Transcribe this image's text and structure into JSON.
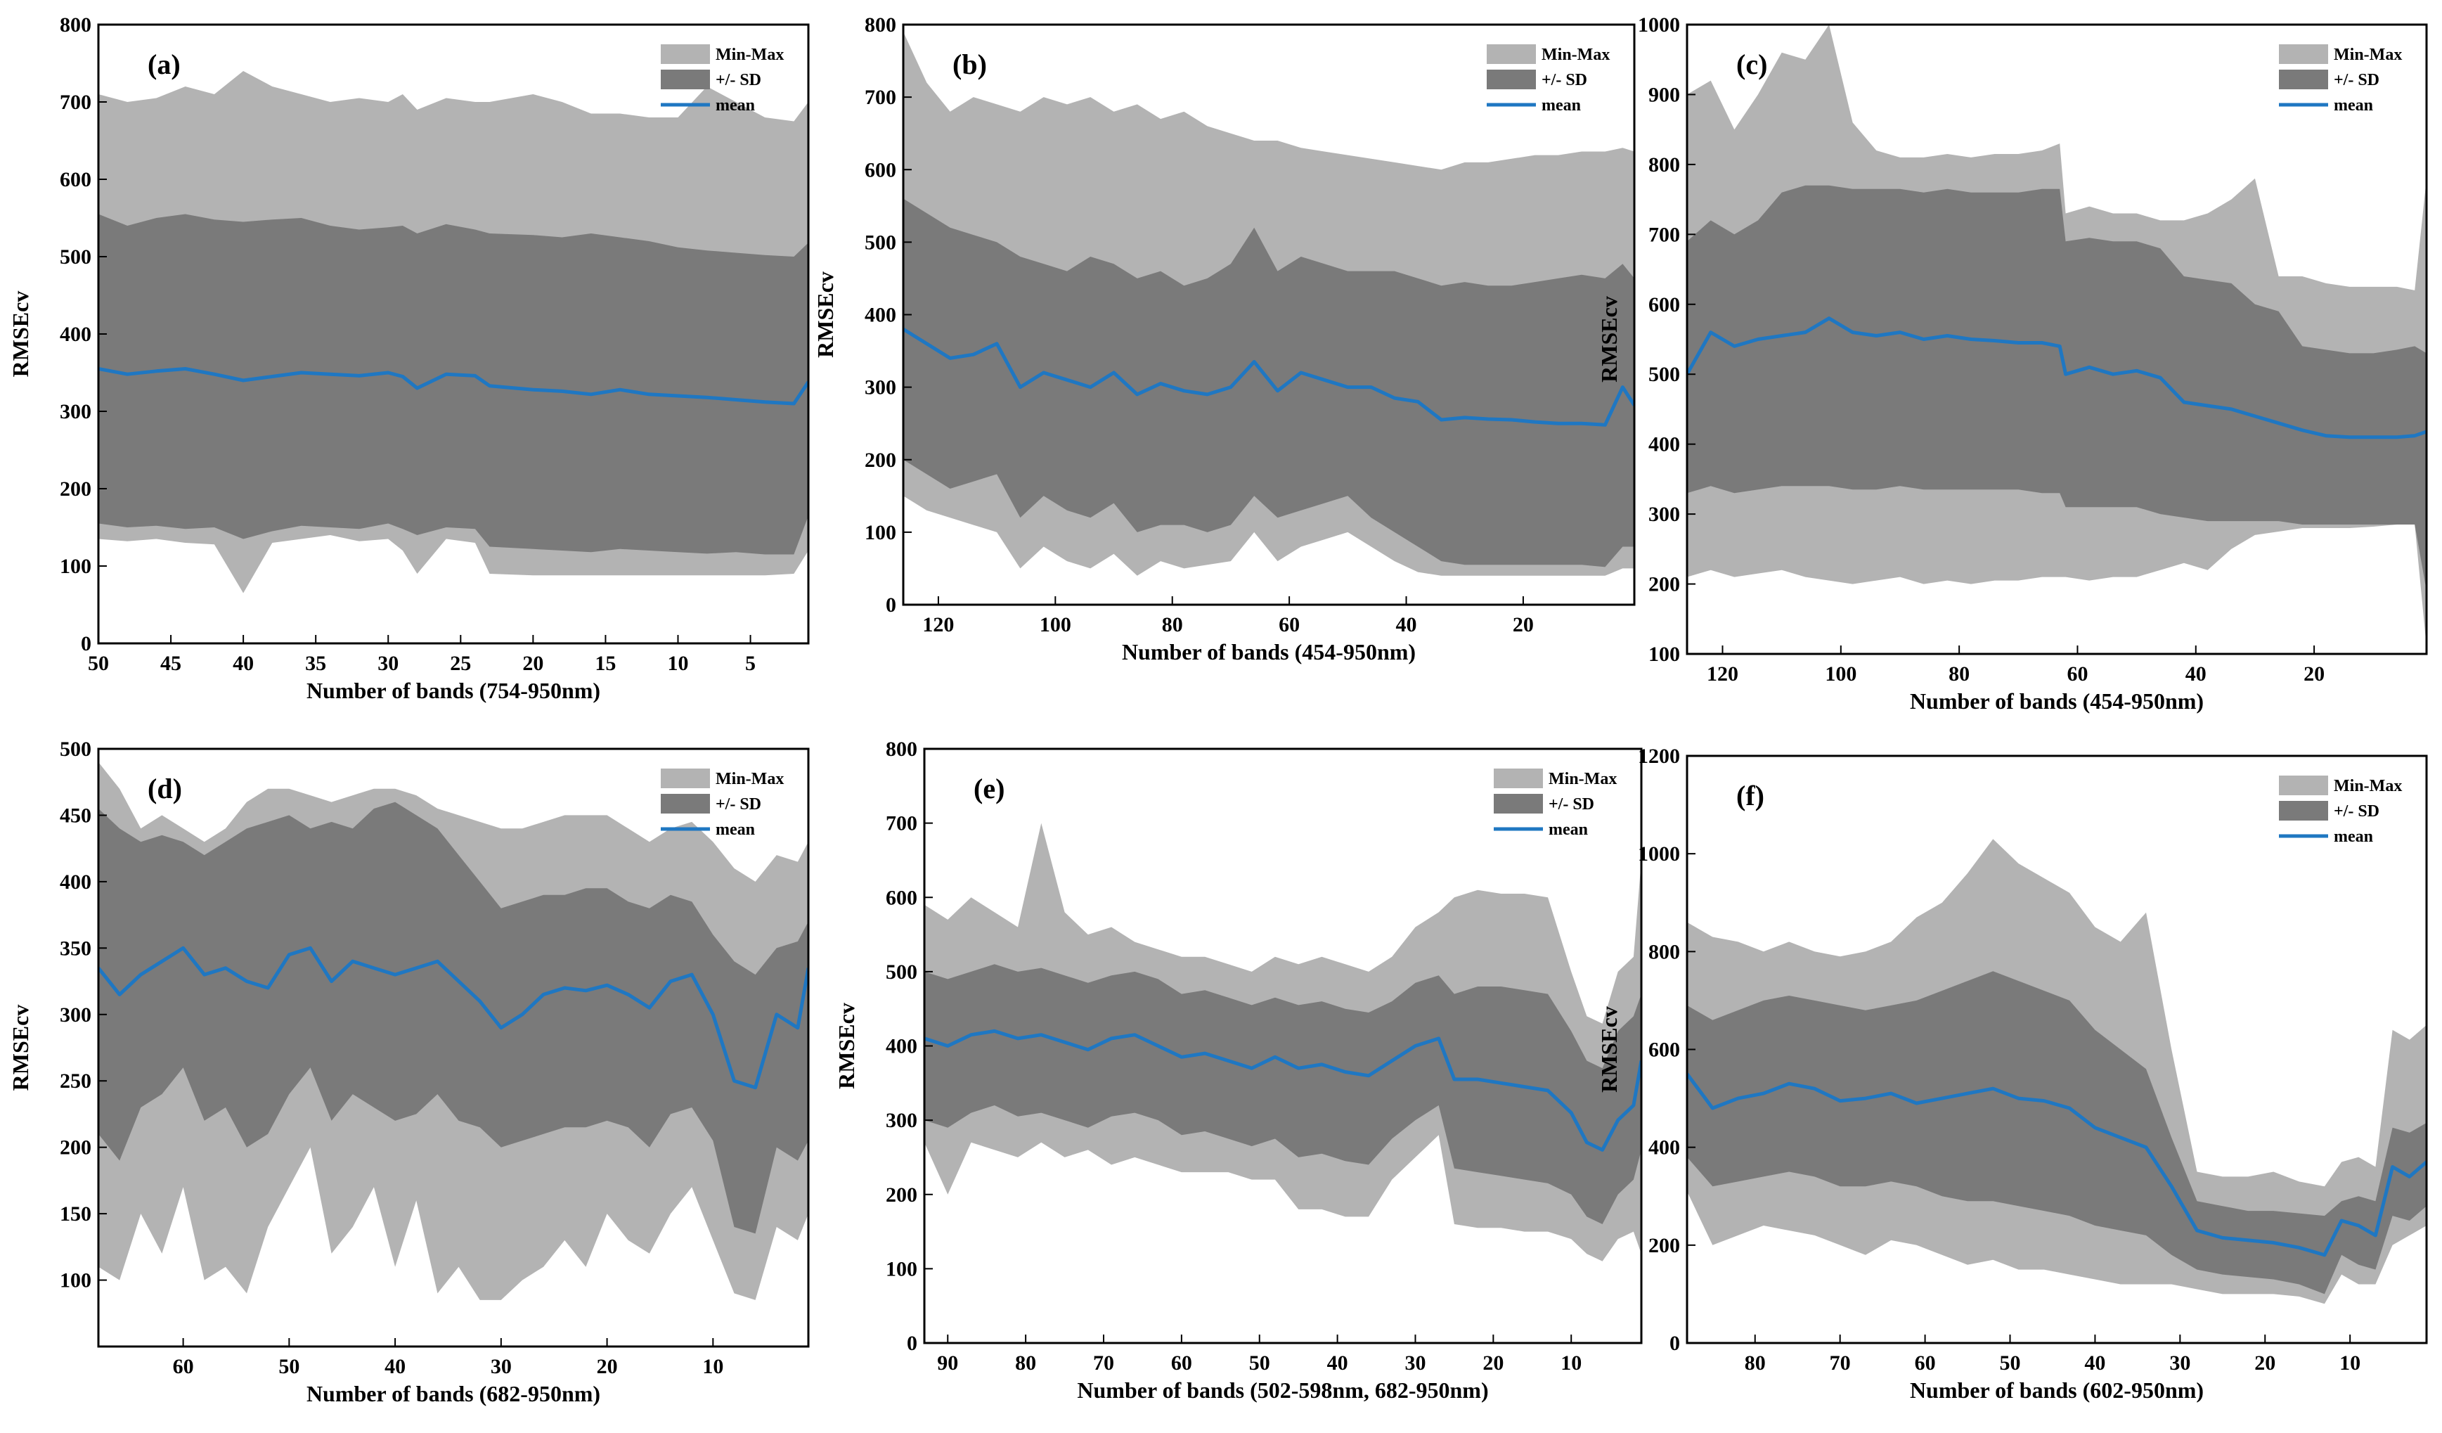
{
  "figure": {
    "description_free": true
  },
  "style": {
    "minmax_color": "#b3b3b3",
    "sd_color": "#7a7a7a",
    "mean_color": "#1f77c2",
    "axis_color": "#000000"
  },
  "chart_data": [
    {
      "id": "a",
      "type": "area",
      "panel_label": "(a)",
      "xlabel": "Number of bands (754-950nm)",
      "ylabel": "RMSEcv",
      "xlim": [
        50,
        1
      ],
      "xreversed": true,
      "ylim": [
        0,
        800
      ],
      "xticks": [
        50,
        45,
        40,
        35,
        30,
        25,
        20,
        15,
        10,
        5
      ],
      "yticks": [
        0,
        100,
        200,
        300,
        400,
        500,
        600,
        700,
        800
      ],
      "legend": [
        "Min-Max",
        "+/- SD",
        "mean"
      ],
      "legend_position": "top-right",
      "x": [
        50,
        48,
        46,
        44,
        42,
        40,
        38,
        36,
        34,
        32,
        30,
        29,
        28,
        26,
        24,
        23,
        20,
        18,
        16,
        14,
        12,
        10,
        8,
        6,
        4,
        2,
        1
      ],
      "mean": [
        355,
        348,
        352,
        355,
        348,
        340,
        345,
        350,
        348,
        346,
        350,
        345,
        330,
        348,
        346,
        333,
        328,
        326,
        322,
        328,
        322,
        320,
        318,
        315,
        312,
        310,
        338
      ],
      "sd_upper": [
        555,
        540,
        550,
        555,
        548,
        545,
        548,
        550,
        540,
        535,
        538,
        540,
        530,
        542,
        535,
        530,
        528,
        525,
        530,
        525,
        520,
        512,
        508,
        505,
        502,
        500,
        518
      ],
      "sd_lower": [
        155,
        150,
        152,
        148,
        150,
        135,
        145,
        152,
        150,
        148,
        155,
        148,
        140,
        150,
        148,
        125,
        122,
        120,
        118,
        122,
        120,
        118,
        116,
        118,
        115,
        115,
        165
      ],
      "max": [
        710,
        700,
        705,
        720,
        710,
        740,
        720,
        710,
        700,
        705,
        700,
        710,
        690,
        705,
        700,
        700,
        710,
        700,
        685,
        685,
        680,
        680,
        720,
        700,
        680,
        675,
        700
      ],
      "min": [
        135,
        132,
        135,
        130,
        128,
        65,
        130,
        135,
        140,
        132,
        135,
        120,
        90,
        135,
        130,
        90,
        88,
        88,
        88,
        88,
        88,
        88,
        88,
        88,
        88,
        90,
        120
      ]
    },
    {
      "id": "b",
      "type": "area",
      "panel_label": "(b)",
      "xlabel": "Number of bands (454-950nm)",
      "ylabel": "RMSEcv",
      "xlim": [
        126,
        1
      ],
      "xreversed": true,
      "ylim": [
        0,
        800
      ],
      "xticks": [
        120,
        100,
        80,
        60,
        40,
        20
      ],
      "yticks": [
        0,
        100,
        200,
        300,
        400,
        500,
        600,
        700,
        800
      ],
      "legend": [
        "Min-Max",
        "+/- SD",
        "mean"
      ],
      "legend_position": "top-right",
      "x": [
        126,
        122,
        118,
        114,
        110,
        106,
        102,
        98,
        94,
        90,
        86,
        82,
        78,
        74,
        70,
        66,
        62,
        58,
        54,
        50,
        46,
        42,
        38,
        34,
        30,
        26,
        22,
        18,
        14,
        10,
        6,
        3,
        1
      ],
      "mean": [
        380,
        360,
        340,
        345,
        360,
        300,
        320,
        310,
        300,
        320,
        290,
        305,
        295,
        290,
        300,
        335,
        295,
        320,
        310,
        300,
        300,
        285,
        280,
        255,
        258,
        256,
        255,
        252,
        250,
        250,
        248,
        300,
        275
      ],
      "sd_upper": [
        560,
        540,
        520,
        510,
        500,
        480,
        470,
        460,
        480,
        470,
        450,
        460,
        440,
        450,
        470,
        520,
        460,
        480,
        470,
        460,
        460,
        460,
        450,
        440,
        445,
        440,
        440,
        445,
        450,
        455,
        450,
        470,
        450
      ],
      "sd_lower": [
        200,
        180,
        160,
        170,
        180,
        120,
        150,
        130,
        120,
        140,
        100,
        110,
        110,
        100,
        110,
        150,
        120,
        130,
        140,
        150,
        120,
        100,
        80,
        60,
        55,
        55,
        55,
        55,
        55,
        55,
        52,
        80,
        80
      ],
      "max": [
        790,
        720,
        680,
        700,
        690,
        680,
        700,
        690,
        700,
        680,
        690,
        670,
        680,
        660,
        650,
        640,
        640,
        630,
        625,
        620,
        615,
        610,
        605,
        600,
        610,
        610,
        615,
        620,
        620,
        625,
        625,
        630,
        625
      ],
      "min": [
        150,
        130,
        120,
        110,
        100,
        50,
        80,
        60,
        50,
        70,
        40,
        60,
        50,
        55,
        60,
        100,
        60,
        80,
        90,
        100,
        80,
        60,
        45,
        40,
        40,
        40,
        40,
        40,
        40,
        40,
        40,
        50,
        50
      ]
    },
    {
      "id": "c",
      "type": "area",
      "panel_label": "(c)",
      "xlabel": "Number of bands (454-950nm)",
      "ylabel": "RMSEcv",
      "xlim": [
        126,
        1
      ],
      "xreversed": true,
      "ylim": [
        100,
        1000
      ],
      "xticks": [
        120,
        100,
        80,
        60,
        40,
        20
      ],
      "yticks": [
        100,
        200,
        300,
        400,
        500,
        600,
        700,
        800,
        900,
        1000
      ],
      "legend": [
        "Min-Max",
        "+/- SD",
        "mean"
      ],
      "legend_position": "top-right",
      "x": [
        126,
        122,
        118,
        114,
        110,
        106,
        102,
        98,
        94,
        90,
        86,
        82,
        78,
        74,
        70,
        66,
        63,
        62,
        58,
        54,
        50,
        46,
        42,
        38,
        34,
        30,
        26,
        22,
        18,
        14,
        10,
        6,
        3,
        1
      ],
      "mean": [
        500,
        560,
        540,
        550,
        555,
        560,
        580,
        560,
        555,
        560,
        550,
        555,
        550,
        548,
        545,
        545,
        540,
        500,
        510,
        500,
        505,
        495,
        460,
        455,
        450,
        440,
        430,
        420,
        412,
        410,
        410,
        410,
        412,
        418
      ],
      "sd_upper": [
        690,
        720,
        700,
        720,
        760,
        770,
        770,
        765,
        765,
        765,
        760,
        765,
        760,
        760,
        760,
        765,
        765,
        690,
        695,
        690,
        690,
        680,
        640,
        635,
        630,
        600,
        590,
        540,
        535,
        530,
        530,
        535,
        540,
        530
      ],
      "sd_lower": [
        330,
        340,
        330,
        335,
        340,
        340,
        340,
        335,
        335,
        340,
        335,
        335,
        335,
        335,
        335,
        330,
        330,
        310,
        310,
        310,
        310,
        300,
        295,
        290,
        290,
        290,
        290,
        285,
        285,
        285,
        285,
        285,
        285,
        190
      ],
      "max": [
        900,
        920,
        850,
        900,
        960,
        950,
        1000,
        860,
        820,
        810,
        810,
        815,
        810,
        815,
        815,
        820,
        830,
        730,
        740,
        730,
        730,
        720,
        720,
        730,
        750,
        780,
        640,
        640,
        630,
        625,
        625,
        625,
        620,
        780
      ],
      "min": [
        210,
        220,
        210,
        215,
        220,
        210,
        205,
        200,
        205,
        210,
        200,
        205,
        200,
        205,
        205,
        210,
        210,
        210,
        205,
        210,
        210,
        220,
        230,
        220,
        250,
        270,
        275,
        280,
        280,
        280,
        282,
        285,
        285,
        110
      ]
    },
    {
      "id": "d",
      "type": "area",
      "panel_label": "(d)",
      "xlabel": "Number of bands (682-950nm)",
      "ylabel": "RMSEcv",
      "xlim": [
        68,
        1
      ],
      "xreversed": true,
      "ylim": [
        50,
        500
      ],
      "xticks": [
        60,
        50,
        40,
        30,
        20,
        10
      ],
      "yticks": [
        100,
        150,
        200,
        250,
        300,
        350,
        400,
        450,
        500
      ],
      "legend": [
        "Min-Max",
        "+/- SD",
        "mean"
      ],
      "legend_position": "top-right",
      "x": [
        68,
        66,
        64,
        62,
        60,
        58,
        56,
        54,
        52,
        50,
        48,
        46,
        44,
        42,
        40,
        38,
        36,
        34,
        32,
        30,
        28,
        26,
        24,
        22,
        20,
        18,
        16,
        14,
        12,
        10,
        8,
        6,
        4,
        2,
        1
      ],
      "mean": [
        335,
        315,
        330,
        340,
        350,
        330,
        335,
        325,
        320,
        345,
        350,
        325,
        340,
        335,
        330,
        335,
        340,
        325,
        310,
        290,
        300,
        315,
        320,
        318,
        322,
        315,
        305,
        325,
        330,
        300,
        250,
        245,
        300,
        290,
        335
      ],
      "sd_upper": [
        455,
        440,
        430,
        435,
        430,
        420,
        430,
        440,
        445,
        450,
        440,
        445,
        440,
        455,
        460,
        450,
        440,
        420,
        400,
        380,
        385,
        390,
        390,
        395,
        395,
        385,
        380,
        390,
        385,
        360,
        340,
        330,
        350,
        355,
        370
      ],
      "sd_lower": [
        210,
        190,
        230,
        240,
        260,
        220,
        230,
        200,
        210,
        240,
        260,
        220,
        240,
        230,
        220,
        225,
        240,
        220,
        215,
        200,
        205,
        210,
        215,
        215,
        220,
        215,
        200,
        225,
        230,
        205,
        140,
        135,
        200,
        190,
        205
      ],
      "max": [
        490,
        470,
        440,
        450,
        440,
        430,
        440,
        460,
        470,
        470,
        465,
        460,
        465,
        470,
        470,
        465,
        455,
        450,
        445,
        440,
        440,
        445,
        450,
        450,
        450,
        440,
        430,
        440,
        445,
        430,
        410,
        400,
        420,
        415,
        430
      ],
      "min": [
        110,
        100,
        150,
        120,
        170,
        100,
        110,
        90,
        140,
        170,
        200,
        120,
        140,
        170,
        110,
        160,
        90,
        110,
        85,
        85,
        100,
        110,
        130,
        110,
        150,
        130,
        120,
        150,
        170,
        130,
        90,
        85,
        140,
        130,
        150
      ]
    },
    {
      "id": "e",
      "type": "area",
      "panel_label": "(e)",
      "xlabel": "Number of bands (502-598nm, 682-950nm)",
      "ylabel": "RMSEcv",
      "xlim": [
        93,
        1
      ],
      "xreversed": true,
      "ylim": [
        0,
        800
      ],
      "xticks": [
        90,
        80,
        70,
        60,
        50,
        40,
        30,
        20,
        10
      ],
      "yticks": [
        0,
        100,
        200,
        300,
        400,
        500,
        600,
        700,
        800
      ],
      "legend": [
        "Min-Max",
        "+/- SD",
        "mean"
      ],
      "legend_position": "top-right",
      "x": [
        93,
        90,
        87,
        84,
        81,
        78,
        75,
        72,
        69,
        66,
        63,
        60,
        57,
        54,
        51,
        48,
        45,
        42,
        39,
        36,
        33,
        30,
        27,
        25,
        22,
        19,
        16,
        13,
        10,
        8,
        6,
        4,
        2,
        1
      ],
      "mean": [
        410,
        400,
        415,
        420,
        410,
        415,
        405,
        395,
        410,
        415,
        400,
        385,
        390,
        380,
        370,
        385,
        370,
        375,
        365,
        360,
        380,
        400,
        410,
        355,
        355,
        350,
        345,
        340,
        310,
        270,
        260,
        300,
        320,
        380
      ],
      "sd_upper": [
        500,
        490,
        500,
        510,
        500,
        505,
        495,
        485,
        495,
        500,
        490,
        470,
        475,
        465,
        455,
        465,
        455,
        460,
        450,
        445,
        460,
        485,
        495,
        470,
        480,
        480,
        475,
        470,
        420,
        380,
        370,
        420,
        440,
        470
      ],
      "sd_lower": [
        300,
        290,
        310,
        320,
        305,
        310,
        300,
        290,
        305,
        310,
        300,
        280,
        285,
        275,
        265,
        275,
        250,
        255,
        245,
        240,
        275,
        300,
        320,
        235,
        230,
        225,
        220,
        215,
        200,
        170,
        160,
        200,
        220,
        260
      ],
      "max": [
        590,
        570,
        600,
        580,
        560,
        700,
        580,
        550,
        560,
        540,
        530,
        520,
        520,
        510,
        500,
        520,
        510,
        520,
        510,
        500,
        520,
        560,
        580,
        600,
        610,
        605,
        605,
        600,
        500,
        440,
        430,
        500,
        520,
        650
      ],
      "min": [
        270,
        200,
        270,
        260,
        250,
        270,
        250,
        260,
        240,
        250,
        240,
        230,
        230,
        230,
        220,
        220,
        180,
        180,
        170,
        170,
        220,
        250,
        280,
        160,
        155,
        155,
        150,
        150,
        140,
        120,
        110,
        140,
        150,
        120
      ]
    },
    {
      "id": "f",
      "type": "area",
      "panel_label": "(f)",
      "xlabel": "Number of bands (602-950nm)",
      "ylabel": "RMSEcv",
      "xlim": [
        88,
        1
      ],
      "xreversed": true,
      "ylim": [
        0,
        1200
      ],
      "xticks": [
        80,
        70,
        60,
        50,
        40,
        30,
        20,
        10
      ],
      "yticks": [
        0,
        200,
        400,
        600,
        800,
        1000,
        1200
      ],
      "legend": [
        "Min-Max",
        "+/- SD",
        "mean"
      ],
      "legend_position": "top-right",
      "x": [
        88,
        85,
        82,
        79,
        76,
        73,
        70,
        67,
        64,
        61,
        58,
        55,
        52,
        49,
        46,
        43,
        40,
        37,
        34,
        31,
        28,
        25,
        22,
        19,
        16,
        13,
        11,
        9,
        7,
        5,
        3,
        1
      ],
      "mean": [
        550,
        480,
        500,
        510,
        530,
        520,
        495,
        500,
        510,
        490,
        500,
        510,
        520,
        500,
        495,
        480,
        440,
        420,
        400,
        320,
        230,
        215,
        210,
        205,
        195,
        180,
        250,
        240,
        220,
        360,
        340,
        370
      ],
      "sd_upper": [
        690,
        660,
        680,
        700,
        710,
        700,
        690,
        680,
        690,
        700,
        720,
        740,
        760,
        740,
        720,
        700,
        640,
        600,
        560,
        420,
        290,
        280,
        270,
        270,
        265,
        260,
        290,
        300,
        290,
        440,
        430,
        450
      ],
      "sd_lower": [
        380,
        320,
        330,
        340,
        350,
        340,
        320,
        320,
        330,
        320,
        300,
        290,
        290,
        280,
        270,
        260,
        240,
        230,
        220,
        180,
        150,
        140,
        135,
        130,
        120,
        100,
        180,
        160,
        150,
        260,
        250,
        280
      ],
      "max": [
        860,
        830,
        820,
        800,
        820,
        800,
        790,
        800,
        820,
        870,
        900,
        960,
        1030,
        980,
        950,
        920,
        850,
        820,
        880,
        600,
        350,
        340,
        340,
        350,
        330,
        320,
        370,
        380,
        360,
        640,
        620,
        650
      ],
      "min": [
        310,
        200,
        220,
        240,
        230,
        220,
        200,
        180,
        210,
        200,
        180,
        160,
        170,
        150,
        150,
        140,
        130,
        120,
        120,
        120,
        110,
        100,
        100,
        100,
        95,
        80,
        140,
        120,
        120,
        200,
        220,
        240
      ]
    }
  ]
}
